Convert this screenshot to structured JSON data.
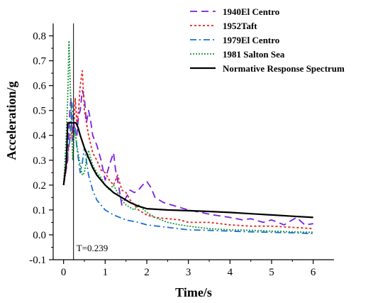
{
  "chart_data": {
    "type": "line",
    "xlabel": "Time/s",
    "ylabel": "Acceleration/g",
    "xlim": [
      -0.25,
      6.5
    ],
    "ylim": [
      -0.1,
      0.85
    ],
    "xticks": [
      "0",
      "1",
      "2",
      "3",
      "4",
      "5",
      "6"
    ],
    "yticks": [
      "-0.1",
      "0.0",
      "0.1",
      "0.2",
      "0.3",
      "0.4",
      "0.5",
      "0.6",
      "0.7",
      "0.8"
    ],
    "legend_position": "top-right",
    "annotation": {
      "text": "T=0.239",
      "x": 0.239
    },
    "series": [
      {
        "name": "1940El Centro",
        "color": "#7b1fe0",
        "dash": "dashed",
        "x": [
          0,
          0.05,
          0.1,
          0.15,
          0.18,
          0.21,
          0.24,
          0.28,
          0.32,
          0.36,
          0.4,
          0.45,
          0.5,
          0.55,
          0.6,
          0.65,
          0.7,
          0.8,
          0.9,
          1.0,
          1.1,
          1.2,
          1.25,
          1.3,
          1.4,
          1.5,
          1.6,
          1.7,
          1.8,
          1.9,
          2.0,
          2.1,
          2.2,
          2.4,
          2.6,
          2.8,
          3.0,
          3.3,
          3.6,
          4.0,
          4.3,
          4.5,
          4.8,
          5.0,
          5.3,
          5.6,
          5.8,
          6.0
        ],
        "y": [
          0.2,
          0.25,
          0.3,
          0.5,
          0.55,
          0.38,
          0.45,
          0.42,
          0.4,
          0.48,
          0.5,
          0.58,
          0.55,
          0.45,
          0.5,
          0.46,
          0.4,
          0.36,
          0.3,
          0.22,
          0.28,
          0.33,
          0.26,
          0.22,
          0.12,
          0.15,
          0.18,
          0.17,
          0.18,
          0.2,
          0.215,
          0.19,
          0.15,
          0.13,
          0.12,
          0.11,
          0.1,
          0.09,
          0.08,
          0.07,
          0.06,
          0.065,
          0.05,
          0.06,
          0.04,
          0.07,
          0.04,
          0.045
        ]
      },
      {
        "name": "1952Taft",
        "color": "#e82020",
        "dash": "dotted",
        "x": [
          0,
          0.05,
          0.1,
          0.15,
          0.2,
          0.24,
          0.28,
          0.32,
          0.36,
          0.4,
          0.45,
          0.5,
          0.55,
          0.6,
          0.7,
          0.8,
          0.9,
          1.0,
          1.1,
          1.2,
          1.3,
          1.4,
          1.5,
          1.6,
          1.8,
          2.0,
          2.2,
          2.5,
          2.8,
          3.0,
          3.5,
          4.0,
          4.5,
          5.0,
          5.5,
          6.0
        ],
        "y": [
          0.2,
          0.25,
          0.32,
          0.38,
          0.42,
          0.4,
          0.55,
          0.45,
          0.5,
          0.6,
          0.66,
          0.5,
          0.45,
          0.4,
          0.33,
          0.3,
          0.26,
          0.25,
          0.22,
          0.2,
          0.24,
          0.18,
          0.17,
          0.14,
          0.1,
          0.08,
          0.07,
          0.065,
          0.06,
          0.05,
          0.05,
          0.04,
          0.035,
          0.035,
          0.03,
          0.025
        ]
      },
      {
        "name": "1979El Centro",
        "color": "#1a6fd8",
        "dash": "dashdot",
        "x": [
          0,
          0.05,
          0.1,
          0.15,
          0.2,
          0.24,
          0.28,
          0.32,
          0.36,
          0.4,
          0.45,
          0.5,
          0.6,
          0.7,
          0.8,
          1.0,
          1.2,
          1.5,
          1.8,
          2.0,
          2.5,
          3.0,
          3.5,
          4.0,
          4.5,
          5.0,
          5.5,
          6.0
        ],
        "y": [
          0.2,
          0.28,
          0.33,
          0.38,
          0.53,
          0.45,
          0.43,
          0.35,
          0.3,
          0.25,
          0.29,
          0.35,
          0.24,
          0.18,
          0.14,
          0.1,
          0.08,
          0.06,
          0.05,
          0.04,
          0.03,
          0.02,
          0.018,
          0.015,
          0.012,
          0.01,
          0.008,
          0.005
        ]
      },
      {
        "name": "1981 Salton Sea",
        "color": "#1a9a3a",
        "dash": "dotted-fine",
        "x": [
          0,
          0.05,
          0.1,
          0.13,
          0.16,
          0.19,
          0.22,
          0.26,
          0.3,
          0.35,
          0.4,
          0.45,
          0.5,
          0.55,
          0.6,
          0.7,
          0.8,
          0.9,
          1.0,
          1.1,
          1.2,
          1.3,
          1.4,
          1.5,
          1.6,
          1.7,
          1.8,
          2.0,
          2.2,
          2.5,
          2.8,
          3.0,
          3.5,
          4.0,
          4.5,
          5.0,
          5.5,
          6.0
        ],
        "y": [
          0.2,
          0.35,
          0.55,
          0.78,
          0.6,
          0.45,
          0.3,
          0.42,
          0.38,
          0.33,
          0.28,
          0.24,
          0.25,
          0.3,
          0.34,
          0.28,
          0.25,
          0.23,
          0.2,
          0.18,
          0.2,
          0.17,
          0.14,
          0.12,
          0.11,
          0.1,
          0.12,
          0.09,
          0.07,
          0.05,
          0.04,
          0.035,
          0.025,
          0.02,
          0.018,
          0.015,
          0.012,
          0.01
        ]
      },
      {
        "name": "Normative Response Spectrum",
        "color": "#000000",
        "dash": "solid",
        "x": [
          0,
          0.03,
          0.06,
          0.08,
          0.1,
          0.239,
          0.239,
          0.28,
          0.3,
          0.35,
          0.4,
          0.5,
          0.6,
          0.7,
          0.8,
          1.0,
          1.2,
          1.4,
          1.6,
          1.8,
          2.0,
          2.5,
          3.0,
          3.5,
          4.0,
          4.5,
          5.0,
          5.5,
          6.0
        ],
        "y": [
          0.2,
          0.24,
          0.28,
          0.36,
          0.45,
          0.45,
          0.45,
          0.45,
          0.45,
          0.43,
          0.4,
          0.35,
          0.31,
          0.27,
          0.24,
          0.2,
          0.17,
          0.15,
          0.13,
          0.115,
          0.105,
          0.1,
          0.097,
          0.094,
          0.09,
          0.085,
          0.08,
          0.075,
          0.07
        ]
      }
    ]
  }
}
